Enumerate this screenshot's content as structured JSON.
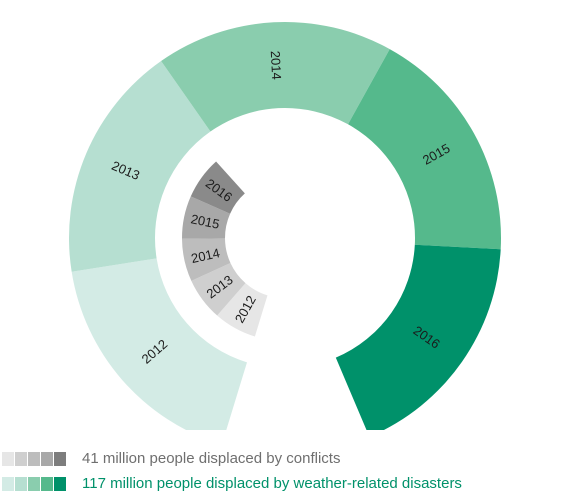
{
  "chart_data": {
    "type": "donut",
    "series": [
      {
        "name": "117 million people displaced by weather-related disasters",
        "ring": "outer",
        "categories": [
          "2012",
          "2013",
          "2014",
          "2015",
          "2016"
        ],
        "colors": [
          "#d3ebe5",
          "#b6dfd1",
          "#8acdae",
          "#55b98c",
          "#00916a"
        ],
        "label_color": "#1b1b1b"
      },
      {
        "name": "41 million people displaced by conflicts",
        "ring": "inner",
        "categories": [
          "2012",
          "2013",
          "2014",
          "2015",
          "2016"
        ],
        "colors": [
          "#e6e6e6",
          "#cfcfcf",
          "#bdbdbd",
          "#a8a8a8",
          "#8a8a8a"
        ],
        "label_color": "#1b1b1b"
      }
    ]
  },
  "legend": [
    {
      "label": "41 million people displaced by conflicts",
      "text_color": "#6f6f6f",
      "swatches": [
        "#e6e6e6",
        "#cfcfcf",
        "#bdbdbd",
        "#a8a8a8",
        "#7d7d7d"
      ]
    },
    {
      "label": "117 million people displaced by weather-related disasters",
      "text_color": "#00916a",
      "swatches": [
        "#d3ebe5",
        "#b6dfd1",
        "#8acdae",
        "#55b98c",
        "#00916a"
      ]
    }
  ]
}
